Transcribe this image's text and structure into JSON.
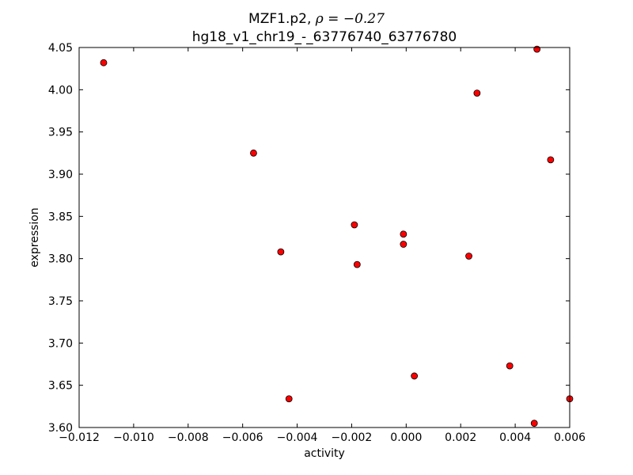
{
  "chart_data": {
    "type": "scatter",
    "title_prefix": "MZF1.p2, ",
    "title_rho": "ρ = −0.27",
    "subtitle": "hg18_v1_chr19_-_63776740_63776780",
    "xlabel": "activity",
    "ylabel": "expression",
    "xlim": [
      -0.012,
      0.006
    ],
    "ylim": [
      3.6,
      4.05
    ],
    "xticks": [
      -0.012,
      -0.01,
      -0.008,
      -0.006,
      -0.004,
      -0.002,
      0.0,
      0.002,
      0.004,
      0.006
    ],
    "xtick_labels": [
      "−0.012",
      "−0.010",
      "−0.008",
      "−0.006",
      "−0.004",
      "−0.002",
      "0.000",
      "0.002",
      "0.004",
      "0.006"
    ],
    "yticks": [
      3.6,
      3.65,
      3.7,
      3.75,
      3.8,
      3.85,
      3.9,
      3.95,
      4.0,
      4.05
    ],
    "ytick_labels": [
      "3.60",
      "3.65",
      "3.70",
      "3.75",
      "3.80",
      "3.85",
      "3.90",
      "3.95",
      "4.00",
      "4.05"
    ],
    "marker_color": "#ff0000",
    "marker_edge": "#000000",
    "grid": false,
    "points": [
      {
        "x": -0.0111,
        "y": 4.032
      },
      {
        "x": -0.0056,
        "y": 3.925
      },
      {
        "x": -0.0046,
        "y": 3.808
      },
      {
        "x": -0.0043,
        "y": 3.634
      },
      {
        "x": -0.0019,
        "y": 3.84
      },
      {
        "x": -0.0018,
        "y": 3.793
      },
      {
        "x": -0.0001,
        "y": 3.829
      },
      {
        "x": -0.0001,
        "y": 3.817
      },
      {
        "x": 0.0003,
        "y": 3.661
      },
      {
        "x": 0.0023,
        "y": 3.803
      },
      {
        "x": 0.0026,
        "y": 3.996
      },
      {
        "x": 0.0038,
        "y": 3.673
      },
      {
        "x": 0.0047,
        "y": 3.605
      },
      {
        "x": 0.0048,
        "y": 4.048
      },
      {
        "x": 0.0053,
        "y": 3.917
      },
      {
        "x": 0.006,
        "y": 3.634
      }
    ]
  }
}
